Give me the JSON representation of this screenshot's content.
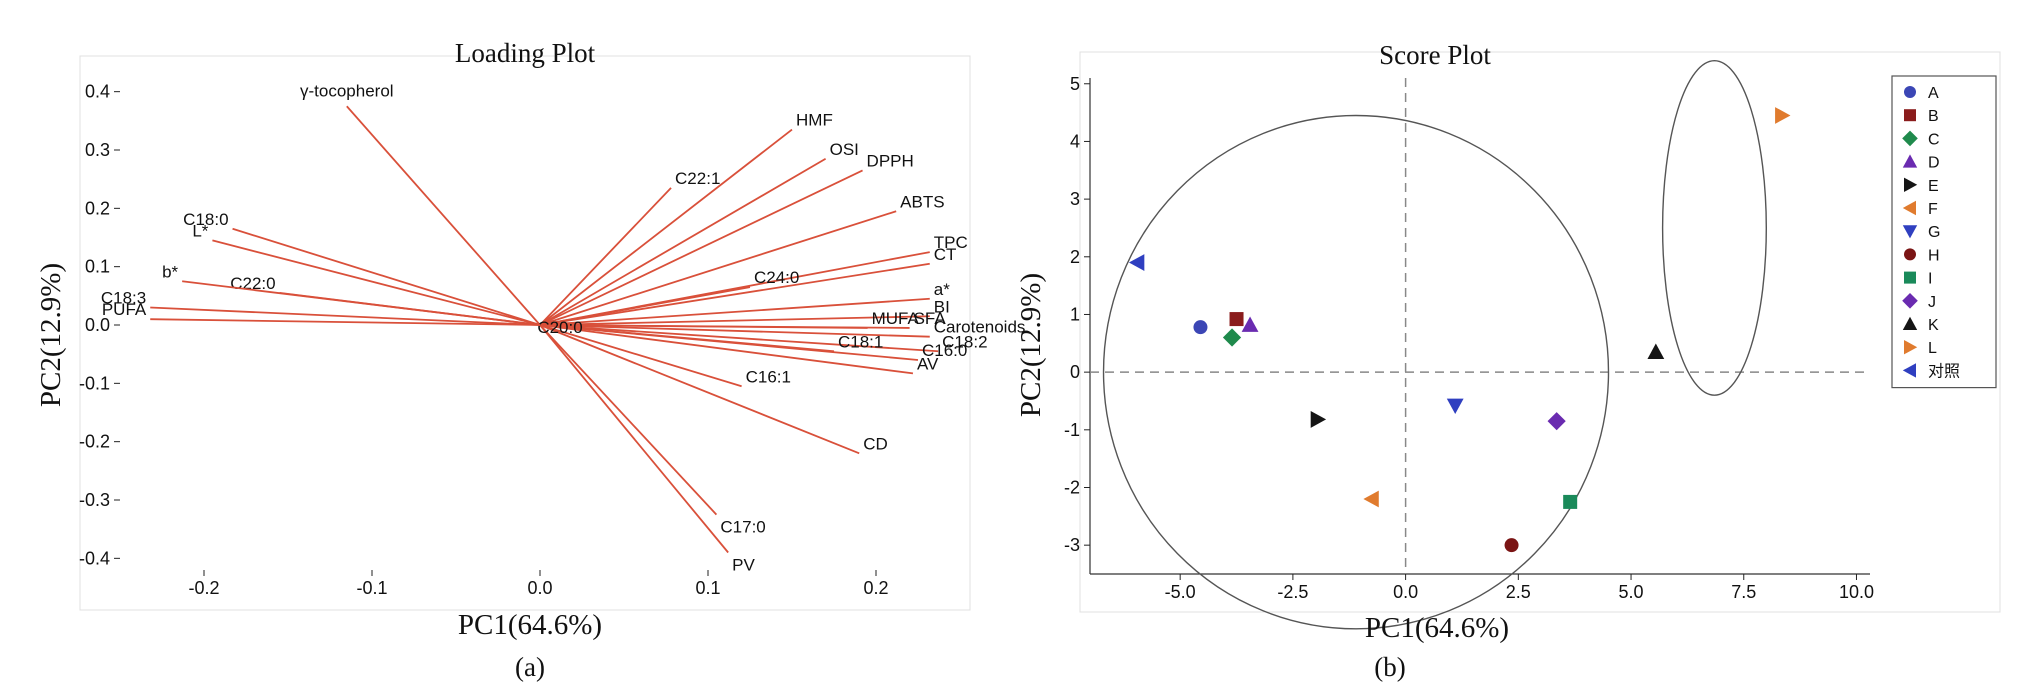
{
  "chart_data": [
    {
      "type": "scatter",
      "subtype": "loading-vectors",
      "title": "Loading Plot",
      "xlabel": "PC1(64.6%)",
      "ylabel": "PC2(12.9%)",
      "caption": "(a)",
      "xlim": [
        -0.25,
        0.25
      ],
      "ylim": [
        -0.42,
        0.42
      ],
      "xticks": [
        "-0.2",
        "-0.1",
        "0.0",
        "0.1",
        "0.2"
      ],
      "yticks": [
        "0.4",
        "0.3",
        "0.2",
        "0.1",
        "0.0",
        "-0.1",
        "-0.2",
        "-0.3",
        "-0.4"
      ],
      "vector_color": "#d9503a",
      "vectors": [
        {
          "label": "γ-tocopherol",
          "x": -0.115,
          "y": 0.375
        },
        {
          "label": "HMF",
          "x": 0.15,
          "y": 0.335
        },
        {
          "label": "OSI",
          "x": 0.17,
          "y": 0.285
        },
        {
          "label": "DPPH",
          "x": 0.192,
          "y": 0.265
        },
        {
          "label": "C22:1",
          "x": 0.078,
          "y": 0.235
        },
        {
          "label": "ABTS",
          "x": 0.212,
          "y": 0.195
        },
        {
          "label": "TPC",
          "x": 0.232,
          "y": 0.125
        },
        {
          "label": "CT",
          "x": 0.232,
          "y": 0.105
        },
        {
          "label": "C24:0",
          "x": 0.125,
          "y": 0.065
        },
        {
          "label": "a*",
          "x": 0.232,
          "y": 0.045
        },
        {
          "label": "BI",
          "x": 0.232,
          "y": 0.015
        },
        {
          "label": "MUFA",
          "x": 0.195,
          "y": -0.005
        },
        {
          "label": "SFA",
          "x": 0.22,
          "y": -0.005
        },
        {
          "label": "Carotenoids",
          "x": 0.232,
          "y": -0.02
        },
        {
          "label": "C18:2",
          "x": 0.237,
          "y": -0.045
        },
        {
          "label": "C16:0",
          "x": 0.225,
          "y": -0.06
        },
        {
          "label": "C18:1",
          "x": 0.175,
          "y": -0.045
        },
        {
          "label": "AV",
          "x": 0.222,
          "y": -0.083
        },
        {
          "label": "C16:1",
          "x": 0.12,
          "y": -0.105
        },
        {
          "label": "CD",
          "x": 0.19,
          "y": -0.22
        },
        {
          "label": "C17:0",
          "x": 0.105,
          "y": -0.325
        },
        {
          "label": "PV",
          "x": 0.112,
          "y": -0.39
        },
        {
          "label": "C20:0",
          "x": 0.0,
          "y": 0.0
        },
        {
          "label": "C18:0",
          "x": -0.183,
          "y": 0.165
        },
        {
          "label": "L*",
          "x": -0.195,
          "y": 0.145
        },
        {
          "label": "C22:0",
          "x": -0.155,
          "y": 0.055
        },
        {
          "label": "b*",
          "x": -0.213,
          "y": 0.075
        },
        {
          "label": "C18:3",
          "x": -0.232,
          "y": 0.03
        },
        {
          "label": "PUFA",
          "x": -0.232,
          "y": 0.01
        }
      ]
    },
    {
      "type": "scatter",
      "subtype": "score-plot",
      "title": "Score Plot",
      "xlabel": "PC1(64.6%)",
      "ylabel": "PC2(12.9%)",
      "caption": "(b)",
      "xlim": [
        -7,
        10.3
      ],
      "ylim": [
        -3.5,
        5.1
      ],
      "xticks": [
        "-5.0",
        "-2.5",
        "0.0",
        "2.5",
        "5.0",
        "7.5",
        "10.0"
      ],
      "yticks": [
        "5",
        "4",
        "3",
        "2",
        "1",
        "0",
        "-1",
        "-2",
        "-3"
      ],
      "reference_lines": "dashed at x=0 and y=0",
      "ellipses": [
        {
          "cx": -1.1,
          "cy": 0.0,
          "rx": 5.6,
          "ry": 4.45
        },
        {
          "cx": 6.85,
          "cy": 2.5,
          "rx": 1.15,
          "ry": 2.9
        }
      ],
      "legend_position": "right",
      "points": [
        {
          "label": "A",
          "x": -4.55,
          "y": 0.78,
          "marker": "circle",
          "color": "#3b46b5"
        },
        {
          "label": "B",
          "x": -3.75,
          "y": 0.92,
          "marker": "square",
          "color": "#8a1c1c"
        },
        {
          "label": "C",
          "x": -3.85,
          "y": 0.6,
          "marker": "diamond",
          "color": "#1f8a4c"
        },
        {
          "label": "D",
          "x": -3.45,
          "y": 0.82,
          "marker": "triangle-up",
          "color": "#6a2bb0"
        },
        {
          "label": "E",
          "x": -1.95,
          "y": -0.82,
          "marker": "triangle-right",
          "color": "#151515"
        },
        {
          "label": "F",
          "x": -0.75,
          "y": -2.2,
          "marker": "triangle-left",
          "color": "#e07b2e"
        },
        {
          "label": "G",
          "x": 1.1,
          "y": -0.58,
          "marker": "triangle-down",
          "color": "#2f3fc0"
        },
        {
          "label": "H",
          "x": 2.35,
          "y": -3.0,
          "marker": "circle",
          "color": "#7a1414"
        },
        {
          "label": "I",
          "x": 3.65,
          "y": -2.25,
          "marker": "square",
          "color": "#1a8a5a"
        },
        {
          "label": "J",
          "x": 3.35,
          "y": -0.85,
          "marker": "diamond",
          "color": "#6a2bb0"
        },
        {
          "label": "K",
          "x": 5.55,
          "y": 0.35,
          "marker": "triangle-up",
          "color": "#151515"
        },
        {
          "label": "L",
          "x": 8.35,
          "y": 4.45,
          "marker": "triangle-right",
          "color": "#e07b2e"
        },
        {
          "label": "对照",
          "x": -5.95,
          "y": 1.9,
          "marker": "triangle-left",
          "color": "#2f3fc0"
        }
      ]
    }
  ]
}
